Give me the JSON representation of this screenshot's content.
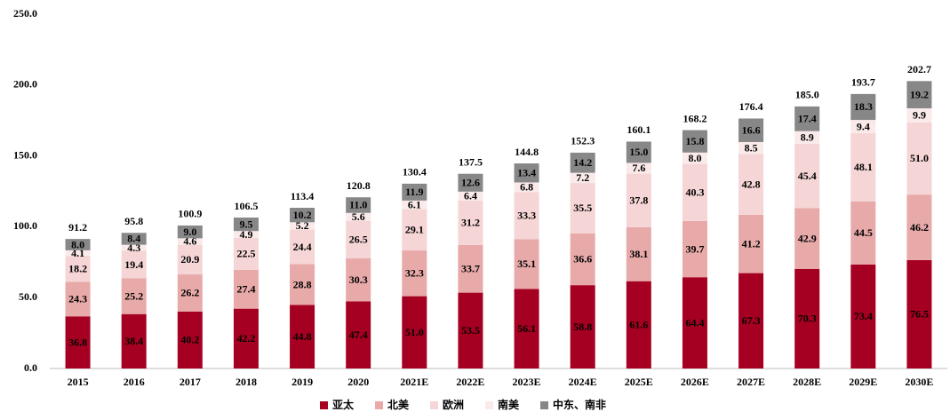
{
  "chart_data": {
    "type": "stacked_bar",
    "categories": [
      "2015",
      "2016",
      "2017",
      "2018",
      "2019",
      "2020",
      "2021E",
      "2022E",
      "2023E",
      "2024E",
      "2025E",
      "2026E",
      "2027E",
      "2028E",
      "2029E",
      "2030E"
    ],
    "series": [
      {
        "name": "亚太",
        "color": "#a50021",
        "values": [
          36.8,
          38.4,
          40.2,
          42.2,
          44.8,
          47.4,
          51.0,
          53.5,
          56.1,
          58.8,
          61.6,
          64.4,
          67.3,
          70.3,
          73.4,
          76.5
        ],
        "value_labels": [
          "36.8",
          "38.4",
          "40.2",
          "42.2",
          "44.8",
          "47.4",
          "51.0",
          "53.5",
          "56.1",
          "58.8",
          "61.6",
          "64.4",
          "67.3",
          "70.3",
          "73.4",
          "76.5"
        ]
      },
      {
        "name": "北美",
        "color": "#e8a9a9",
        "values": [
          24.3,
          25.2,
          26.2,
          27.4,
          28.8,
          30.3,
          32.3,
          33.7,
          35.1,
          36.6,
          38.1,
          39.7,
          41.2,
          42.9,
          44.5,
          46.2
        ],
        "value_labels": [
          "24.3",
          "25.2",
          "26.2",
          "27.4",
          "28.8",
          "30.3",
          "32.3",
          "33.7",
          "35.1",
          "36.6",
          "38.1",
          "39.7",
          "41.2",
          "42.9",
          "44.5",
          "46.2"
        ]
      },
      {
        "name": "欧洲",
        "color": "#f5d5d5",
        "values": [
          18.2,
          19.4,
          20.9,
          22.5,
          24.4,
          26.5,
          29.1,
          31.2,
          33.3,
          35.5,
          37.8,
          40.3,
          42.8,
          45.4,
          48.1,
          51.0
        ],
        "value_labels": [
          "18.2",
          "19.4",
          "20.9",
          "22.5",
          "24.4",
          "26.5",
          "29.1",
          "31.2",
          "33.3",
          "35.5",
          "37.8",
          "40.3",
          "42.8",
          "45.4",
          "48.1",
          "51.0"
        ]
      },
      {
        "name": "南美",
        "color": "#fbeaea",
        "values": [
          4.1,
          4.3,
          4.6,
          4.9,
          5.2,
          5.6,
          6.1,
          6.4,
          6.8,
          7.2,
          7.6,
          8.0,
          8.5,
          8.9,
          9.4,
          9.9
        ],
        "value_labels": [
          "4.1",
          "4.3",
          "4.6",
          "4.9",
          "5.2",
          "5.6",
          "6.1",
          "6.4",
          "6.8",
          "7.2",
          "7.6",
          "8.0",
          "8.5",
          "8.9",
          "9.4",
          "9.9"
        ]
      },
      {
        "name": "中东、南非",
        "color": "#878787",
        "values": [
          8.0,
          8.4,
          9.0,
          9.5,
          10.2,
          11.0,
          11.9,
          12.6,
          13.4,
          14.2,
          15.0,
          15.8,
          16.6,
          17.4,
          18.3,
          19.2
        ],
        "value_labels": [
          "8.0",
          "8.4",
          "9.0",
          "9.5",
          "10.2",
          "11.0",
          "11.9",
          "12.6",
          "13.4",
          "14.2",
          "15.0",
          "15.8",
          "16.6",
          "17.4",
          "18.3",
          "19.2"
        ]
      }
    ],
    "totals": [
      91.2,
      95.8,
      100.9,
      106.5,
      113.4,
      120.8,
      130.4,
      137.5,
      144.8,
      152.3,
      160.1,
      168.2,
      176.4,
      185.0,
      193.7,
      202.7
    ],
    "total_labels": [
      "91.2",
      "95.8",
      "100.9",
      "106.5",
      "113.4",
      "120.8",
      "130.4",
      "137.5",
      "144.8",
      "152.3",
      "160.1",
      "168.2",
      "176.4",
      "185.0",
      "193.7",
      "202.7"
    ],
    "ylim": [
      0,
      250
    ],
    "yticks": [
      {
        "value": 0,
        "label": "0.0"
      },
      {
        "value": 50,
        "label": "50.0"
      },
      {
        "value": 100,
        "label": "100.0"
      },
      {
        "value": 150,
        "label": "150.0"
      },
      {
        "value": 200,
        "label": "200.0"
      },
      {
        "value": 250,
        "label": "250.0"
      }
    ],
    "grid": false,
    "legend": "bottom"
  }
}
